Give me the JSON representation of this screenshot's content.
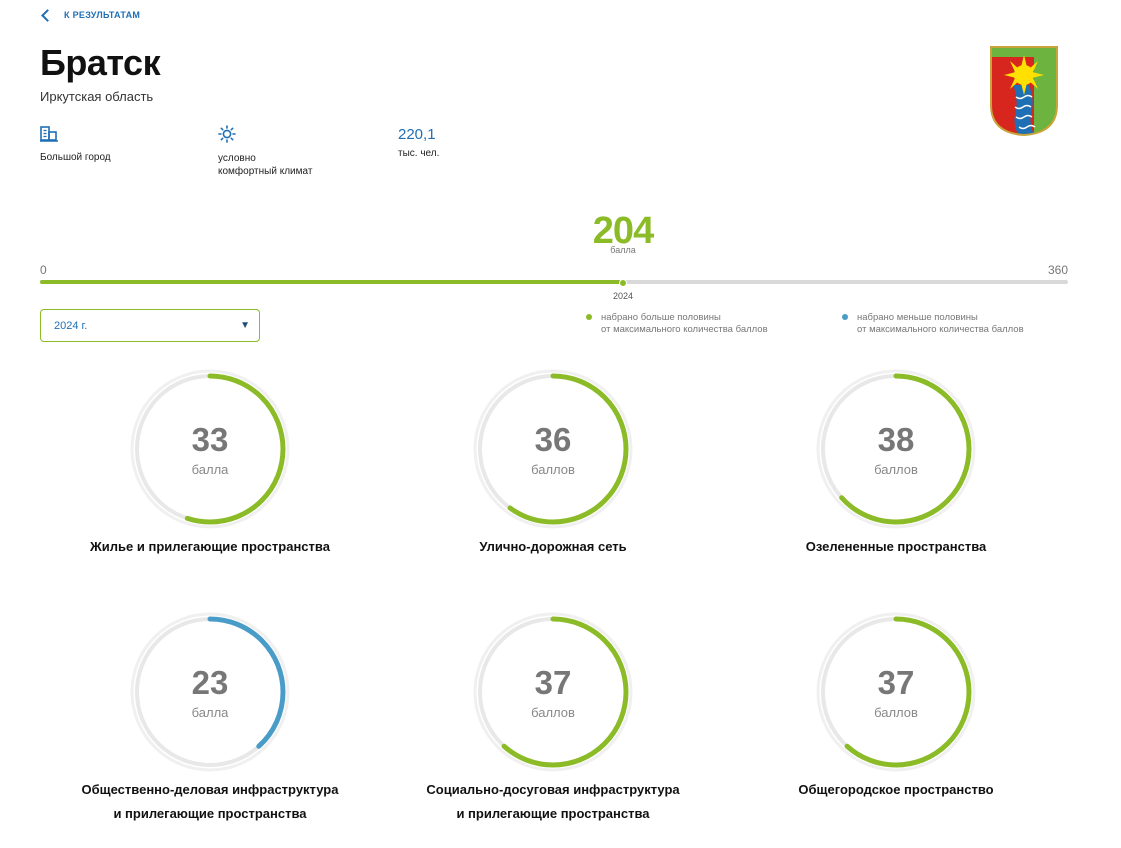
{
  "nav": {
    "back_label": "К РЕЗУЛЬТАТАМ"
  },
  "city": {
    "name": "Братск",
    "region": "Иркутская область"
  },
  "facts": {
    "size_icon": "building-icon",
    "size_label": "Большой город",
    "climate_icon": "sun-icon",
    "climate_label_1": "условно",
    "climate_label_2": "комфортный климат",
    "population_value": "220,1",
    "population_unit": "тыс. чел."
  },
  "emblem": {
    "icon": "city-emblem-sun-river",
    "colors": {
      "green": "#6cb33f",
      "red": "#d7261e",
      "yellow": "#ffe000",
      "blue": "#1f6fb5"
    }
  },
  "total": {
    "score": "204",
    "unit": "балла",
    "min": "0",
    "max": "360",
    "year": "2024",
    "score_value": 204,
    "max_value": 360
  },
  "year_select": {
    "value": "2024 г."
  },
  "legend": {
    "above_line1": "набрано больше половины",
    "above_line2": "от максимального количества баллов",
    "below_line1": "набрано меньше половины",
    "below_line2": "от максимального количества баллов"
  },
  "colors": {
    "above": "#8cbb28",
    "below": "#4a9cc8",
    "accent": "#1f6fb5"
  },
  "categories": [
    {
      "score": "33",
      "unit": "балла",
      "value": 33,
      "max": 60,
      "title": "Жилье и прилегающие пространства",
      "title2": ""
    },
    {
      "score": "36",
      "unit": "баллов",
      "value": 36,
      "max": 60,
      "title": "Улично-дорожная сеть",
      "title2": ""
    },
    {
      "score": "38",
      "unit": "баллов",
      "value": 38,
      "max": 60,
      "title": "Озелененные пространства",
      "title2": ""
    },
    {
      "score": "23",
      "unit": "балла",
      "value": 23,
      "max": 60,
      "title": "Общественно-деловая инфраструктура",
      "title2": "и прилегающие пространства"
    },
    {
      "score": "37",
      "unit": "баллов",
      "value": 37,
      "max": 60,
      "title": "Социально-досуговая инфраструктура",
      "title2": "и прилегающие пространства"
    },
    {
      "score": "37",
      "unit": "баллов",
      "value": 37,
      "max": 60,
      "title": "Общегородское пространство",
      "title2": ""
    }
  ]
}
